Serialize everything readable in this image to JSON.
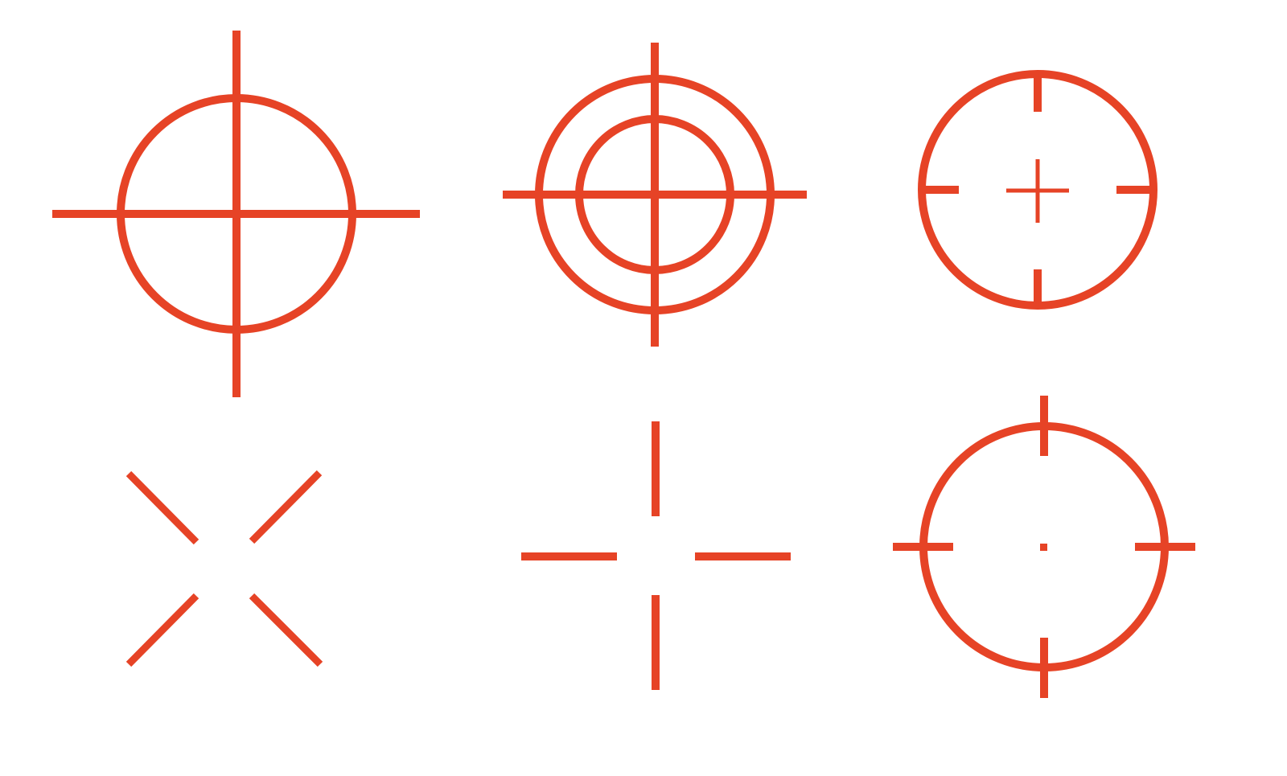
{
  "color": "#e64326",
  "background": "#ffffff",
  "icons": [
    {
      "name": "crosshair-circle-icon"
    },
    {
      "name": "crosshair-double-circle-icon"
    },
    {
      "name": "crosshair-circle-ticks-icon"
    },
    {
      "name": "crosshair-diagonal-icon"
    },
    {
      "name": "crosshair-gap-icon"
    },
    {
      "name": "crosshair-circle-dot-icon"
    }
  ]
}
